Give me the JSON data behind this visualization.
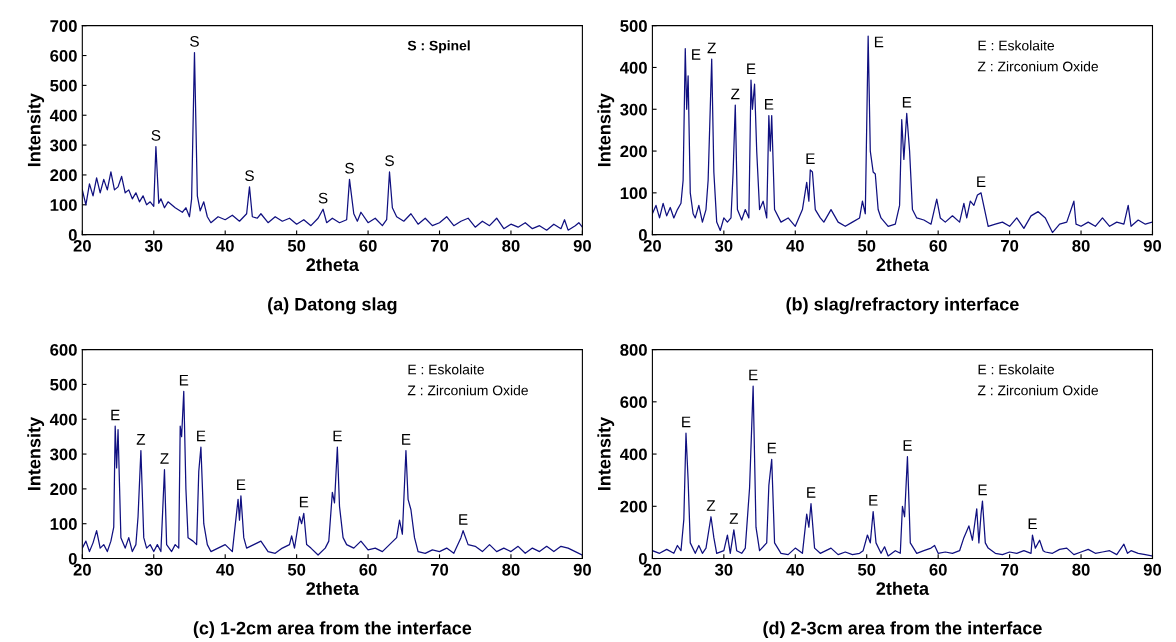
{
  "chart_data": [
    {
      "type": "line",
      "title": "(a) Datong slag",
      "xlabel": "2theta",
      "ylabel": "Intensity",
      "xlim": [
        20,
        90
      ],
      "ylim": [
        0,
        700
      ],
      "xticks": [
        20,
        30,
        40,
        50,
        60,
        70,
        80,
        90
      ],
      "yticks": [
        0,
        100,
        200,
        300,
        400,
        500,
        600,
        700
      ],
      "series": [
        {
          "color": "#101080",
          "x": [
            20,
            20.5,
            21,
            21.5,
            22,
            22.5,
            23,
            23.5,
            24,
            24.5,
            25,
            25.5,
            26,
            26.5,
            27,
            27.5,
            28,
            28.5,
            29,
            29.5,
            30,
            30.3,
            30.7,
            31,
            31.5,
            32,
            33,
            34,
            34.5,
            35,
            35.3,
            35.7,
            36.1,
            36.5,
            37,
            37.5,
            38,
            39,
            40,
            41,
            42,
            43,
            43.4,
            43.8,
            44.5,
            45,
            46,
            47,
            48,
            49,
            50,
            51,
            52,
            53,
            53.7,
            54.2,
            55,
            56,
            57,
            57.4,
            58,
            58.5,
            59,
            60,
            61,
            62,
            62.6,
            63,
            63.4,
            64,
            65,
            66,
            67,
            68,
            69,
            70,
            71,
            72,
            73,
            74,
            75,
            76,
            77,
            78,
            79,
            80,
            81,
            82,
            83,
            84,
            85,
            86,
            87,
            87.5,
            88,
            89,
            89.5,
            90
          ],
          "values": [
            150,
            100,
            170,
            130,
            190,
            140,
            185,
            150,
            210,
            150,
            160,
            195,
            140,
            150,
            120,
            140,
            110,
            130,
            100,
            110,
            95,
            295,
            105,
            120,
            90,
            110,
            90,
            75,
            90,
            60,
            120,
            610,
            130,
            80,
            110,
            60,
            40,
            60,
            50,
            65,
            45,
            70,
            160,
            60,
            55,
            70,
            40,
            60,
            45,
            55,
            35,
            50,
            30,
            55,
            85,
            40,
            55,
            40,
            50,
            185,
            70,
            45,
            75,
            40,
            55,
            30,
            50,
            210,
            90,
            60,
            45,
            70,
            35,
            55,
            30,
            40,
            60,
            30,
            45,
            55,
            25,
            45,
            30,
            55,
            20,
            35,
            25,
            40,
            20,
            30,
            15,
            35,
            20,
            50,
            15,
            30,
            40,
            25
          ]
        }
      ],
      "annotations": [
        "S : Spinel",
        {
          "text": "S",
          "x": 30.3,
          "y": 295
        },
        {
          "text": "S",
          "x": 35.7,
          "y": 610
        },
        {
          "text": "S",
          "x": 43.4,
          "y": 160
        },
        {
          "text": "S",
          "x": 53.7,
          "y": 85
        },
        {
          "text": "S",
          "x": 57.4,
          "y": 185
        },
        {
          "text": "S",
          "x": 63,
          "y": 210
        }
      ]
    },
    {
      "type": "line",
      "title": "(b) slag/refractory interface",
      "xlabel": "2theta",
      "ylabel": "Intensity",
      "xlim": [
        20,
        90
      ],
      "ylim": [
        0,
        500
      ],
      "xticks": [
        20,
        30,
        40,
        50,
        60,
        70,
        80,
        90
      ],
      "yticks": [
        0,
        100,
        200,
        300,
        400,
        500
      ],
      "series": [
        {
          "color": "#101080",
          "x": [
            20,
            20.5,
            21,
            21.5,
            22,
            22.5,
            23,
            23.5,
            24,
            24.3,
            24.6,
            24.8,
            25,
            25.3,
            25.7,
            26,
            26.5,
            27,
            27.5,
            27.8,
            28.3,
            28.6,
            29,
            29.5,
            30,
            30.5,
            31,
            31.3,
            31.6,
            31.9,
            32.5,
            33,
            33.5,
            33.8,
            34,
            34.3,
            34.6,
            35,
            35.5,
            36,
            36.3,
            36.5,
            36.7,
            37.1,
            38,
            39,
            40,
            41,
            41.6,
            41.9,
            42.1,
            42.4,
            42.8,
            43.5,
            44,
            45,
            46,
            47,
            48,
            49,
            49.4,
            49.8,
            50.2,
            50.5,
            50.9,
            51.2,
            51.6,
            52,
            53,
            54,
            54.6,
            54.9,
            55.2,
            55.6,
            56,
            56.4,
            57,
            58,
            59,
            59.8,
            60.3,
            61,
            62,
            63,
            63.6,
            64,
            64.5,
            65,
            65.5,
            66,
            66.5,
            67,
            68,
            69,
            70,
            71,
            72,
            73,
            74,
            75,
            76,
            77,
            78,
            79,
            79.3,
            80,
            81,
            82,
            83,
            84,
            85,
            86,
            86.6,
            87,
            88,
            89,
            90
          ],
          "values": [
            50,
            70,
            40,
            75,
            45,
            65,
            40,
            60,
            75,
            130,
            445,
            300,
            380,
            100,
            50,
            40,
            70,
            30,
            60,
            130,
            420,
            150,
            30,
            10,
            40,
            30,
            40,
            150,
            310,
            60,
            35,
            60,
            40,
            370,
            300,
            360,
            200,
            60,
            80,
            40,
            285,
            200,
            285,
            60,
            30,
            40,
            20,
            60,
            125,
            80,
            155,
            150,
            60,
            40,
            30,
            60,
            30,
            20,
            30,
            40,
            80,
            50,
            475,
            200,
            150,
            145,
            60,
            40,
            20,
            25,
            70,
            275,
            180,
            290,
            200,
            60,
            40,
            35,
            25,
            85,
            40,
            30,
            45,
            30,
            75,
            40,
            80,
            70,
            95,
            100,
            60,
            20,
            25,
            30,
            20,
            40,
            15,
            45,
            55,
            40,
            5,
            25,
            30,
            80,
            25,
            20,
            30,
            20,
            40,
            20,
            30,
            25,
            70,
            20,
            35,
            25,
            30
          ]
        }
      ],
      "annotations": [
        "E : Eskolaite",
        "Z : Zirconium Oxide",
        {
          "text": "E",
          "x": 24.6,
          "y": 445
        },
        {
          "text": "Z",
          "x": 28.3,
          "y": 420
        },
        {
          "text": "Z",
          "x": 31.6,
          "y": 310
        },
        {
          "text": "E",
          "x": 33.8,
          "y": 370
        },
        {
          "text": "E",
          "x": 36.3,
          "y": 285
        },
        {
          "text": "E",
          "x": 42.1,
          "y": 155
        },
        {
          "text": "E",
          "x": 50.2,
          "y": 475
        },
        {
          "text": "E",
          "x": 55.6,
          "y": 290
        },
        {
          "text": "E",
          "x": 66,
          "y": 100
        }
      ]
    },
    {
      "type": "line",
      "title": "(c) 1-2cm area from the interface",
      "xlabel": "2theta",
      "ylabel": "Intensity",
      "xlim": [
        20,
        90
      ],
      "ylim": [
        0,
        600
      ],
      "xticks": [
        20,
        30,
        40,
        50,
        60,
        70,
        80,
        90
      ],
      "yticks": [
        0,
        100,
        200,
        300,
        400,
        500,
        600
      ],
      "series": [
        {
          "color": "#101080",
          "x": [
            20,
            20.5,
            21,
            21.5,
            22,
            22.5,
            23,
            23.5,
            24,
            24.4,
            24.6,
            24.8,
            25,
            25.4,
            26,
            26.5,
            27,
            27.5,
            27.8,
            28.2,
            28.6,
            29,
            29.5,
            30,
            30.5,
            31,
            31.5,
            31.8,
            32.5,
            33,
            33.5,
            33.7,
            33.9,
            34.2,
            34.5,
            34.8,
            35.5,
            36,
            36.3,
            36.6,
            37,
            37.5,
            38,
            39,
            40,
            41,
            41.8,
            42,
            42.2,
            42.6,
            43,
            44,
            45,
            46,
            47,
            48,
            49,
            49.3,
            49.7,
            50.4,
            50.7,
            51,
            51.4,
            52,
            53,
            54,
            54.5,
            55,
            55.3,
            55.7,
            56,
            56.5,
            57,
            58,
            59,
            60,
            61,
            62,
            63,
            64,
            64.4,
            64.8,
            65.3,
            65.6,
            66,
            66.5,
            67,
            68,
            69,
            70,
            71,
            72,
            73,
            73.3,
            74,
            75,
            76,
            77,
            78,
            79,
            80,
            81,
            82,
            83,
            84,
            85,
            86,
            87,
            88,
            89,
            90
          ],
          "values": [
            30,
            50,
            20,
            45,
            80,
            30,
            40,
            20,
            50,
            90,
            380,
            260,
            370,
            60,
            30,
            60,
            20,
            40,
            120,
            310,
            60,
            30,
            40,
            20,
            40,
            20,
            255,
            40,
            20,
            40,
            30,
            380,
            350,
            480,
            200,
            60,
            50,
            40,
            250,
            320,
            100,
            40,
            20,
            30,
            40,
            20,
            170,
            110,
            180,
            60,
            30,
            40,
            50,
            20,
            15,
            30,
            40,
            65,
            30,
            120,
            100,
            130,
            40,
            30,
            10,
            30,
            50,
            190,
            160,
            320,
            150,
            60,
            40,
            30,
            50,
            25,
            30,
            20,
            40,
            60,
            110,
            70,
            310,
            170,
            140,
            60,
            20,
            15,
            25,
            20,
            30,
            15,
            60,
            80,
            40,
            35,
            20,
            40,
            20,
            30,
            20,
            35,
            15,
            30,
            20,
            35,
            20,
            35,
            30,
            20,
            10
          ]
        }
      ],
      "annotations": [
        "E : Eskolaite",
        "Z : Zirconium Oxide",
        {
          "text": "E",
          "x": 24.6,
          "y": 380
        },
        {
          "text": "Z",
          "x": 28.2,
          "y": 310
        },
        {
          "text": "Z",
          "x": 31.5,
          "y": 255
        },
        {
          "text": "E",
          "x": 34.2,
          "y": 480
        },
        {
          "text": "E",
          "x": 36.6,
          "y": 320
        },
        {
          "text": "E",
          "x": 42.2,
          "y": 180
        },
        {
          "text": "E",
          "x": 51,
          "y": 130
        },
        {
          "text": "E",
          "x": 55.7,
          "y": 320
        },
        {
          "text": "E",
          "x": 65.3,
          "y": 310
        },
        {
          "text": "E",
          "x": 73.3,
          "y": 80
        }
      ]
    },
    {
      "type": "line",
      "title": "(d) 2-3cm area from the interface",
      "xlabel": "2theta",
      "ylabel": "Intensity",
      "xlim": [
        20,
        90
      ],
      "ylim": [
        0,
        800
      ],
      "xticks": [
        20,
        30,
        40,
        50,
        60,
        70,
        80,
        90
      ],
      "yticks": [
        0,
        200,
        400,
        600,
        800
      ],
      "series": [
        {
          "color": "#101080",
          "x": [
            20,
            21,
            22,
            23,
            23.5,
            24,
            24.4,
            24.7,
            25,
            25.3,
            26,
            26.5,
            27,
            27.5,
            28.2,
            28.6,
            29,
            30,
            30.5,
            30.9,
            31.4,
            31.8,
            32.5,
            33,
            33.6,
            34.1,
            34.5,
            35,
            36,
            36.3,
            36.7,
            37.1,
            38,
            39,
            40,
            41,
            41.6,
            41.9,
            42.2,
            42.7,
            43.5,
            45,
            46,
            47,
            48,
            49,
            49.5,
            50.1,
            50.5,
            50.9,
            51.3,
            52,
            52.5,
            53,
            54,
            54.7,
            55,
            55.3,
            55.7,
            56.1,
            57,
            58,
            59,
            59.5,
            60,
            61,
            62,
            63,
            63.6,
            64.3,
            64.8,
            65.4,
            65.7,
            66,
            66.2,
            66.6,
            67,
            68,
            69,
            70,
            71,
            72,
            73,
            73.2,
            73.6,
            74.2,
            74.7,
            75,
            76,
            77,
            78,
            79,
            80,
            81,
            82,
            83,
            84,
            85,
            86,
            86.5,
            87,
            88,
            89,
            90
          ],
          "values": [
            30,
            20,
            35,
            20,
            50,
            30,
            150,
            480,
            300,
            60,
            20,
            50,
            20,
            40,
            160,
            80,
            20,
            30,
            90,
            20,
            110,
            30,
            20,
            40,
            270,
            660,
            120,
            30,
            60,
            280,
            380,
            60,
            20,
            15,
            40,
            20,
            170,
            120,
            210,
            40,
            20,
            40,
            15,
            25,
            15,
            20,
            30,
            90,
            60,
            180,
            60,
            20,
            45,
            10,
            30,
            20,
            200,
            160,
            390,
            60,
            20,
            30,
            40,
            50,
            20,
            25,
            20,
            30,
            80,
            125,
            70,
            190,
            60,
            170,
            220,
            60,
            40,
            20,
            15,
            25,
            20,
            30,
            20,
            90,
            40,
            70,
            30,
            25,
            20,
            35,
            40,
            15,
            25,
            35,
            20,
            25,
            30,
            15,
            55,
            20,
            30,
            20,
            15,
            10
          ]
        }
      ],
      "annotations": [
        "E : Eskolaite",
        "Z : Zirconium Oxide",
        {
          "text": "E",
          "x": 24.7,
          "y": 480
        },
        {
          "text": "Z",
          "x": 28.2,
          "y": 160
        },
        {
          "text": "Z",
          "x": 31.4,
          "y": 110
        },
        {
          "text": "E",
          "x": 34.1,
          "y": 660
        },
        {
          "text": "E",
          "x": 36.7,
          "y": 380
        },
        {
          "text": "E",
          "x": 42.2,
          "y": 210
        },
        {
          "text": "E",
          "x": 50.9,
          "y": 180
        },
        {
          "text": "E",
          "x": 55.7,
          "y": 390
        },
        {
          "text": "E",
          "x": 66.2,
          "y": 220
        },
        {
          "text": "E",
          "x": 73.2,
          "y": 90
        }
      ]
    }
  ]
}
